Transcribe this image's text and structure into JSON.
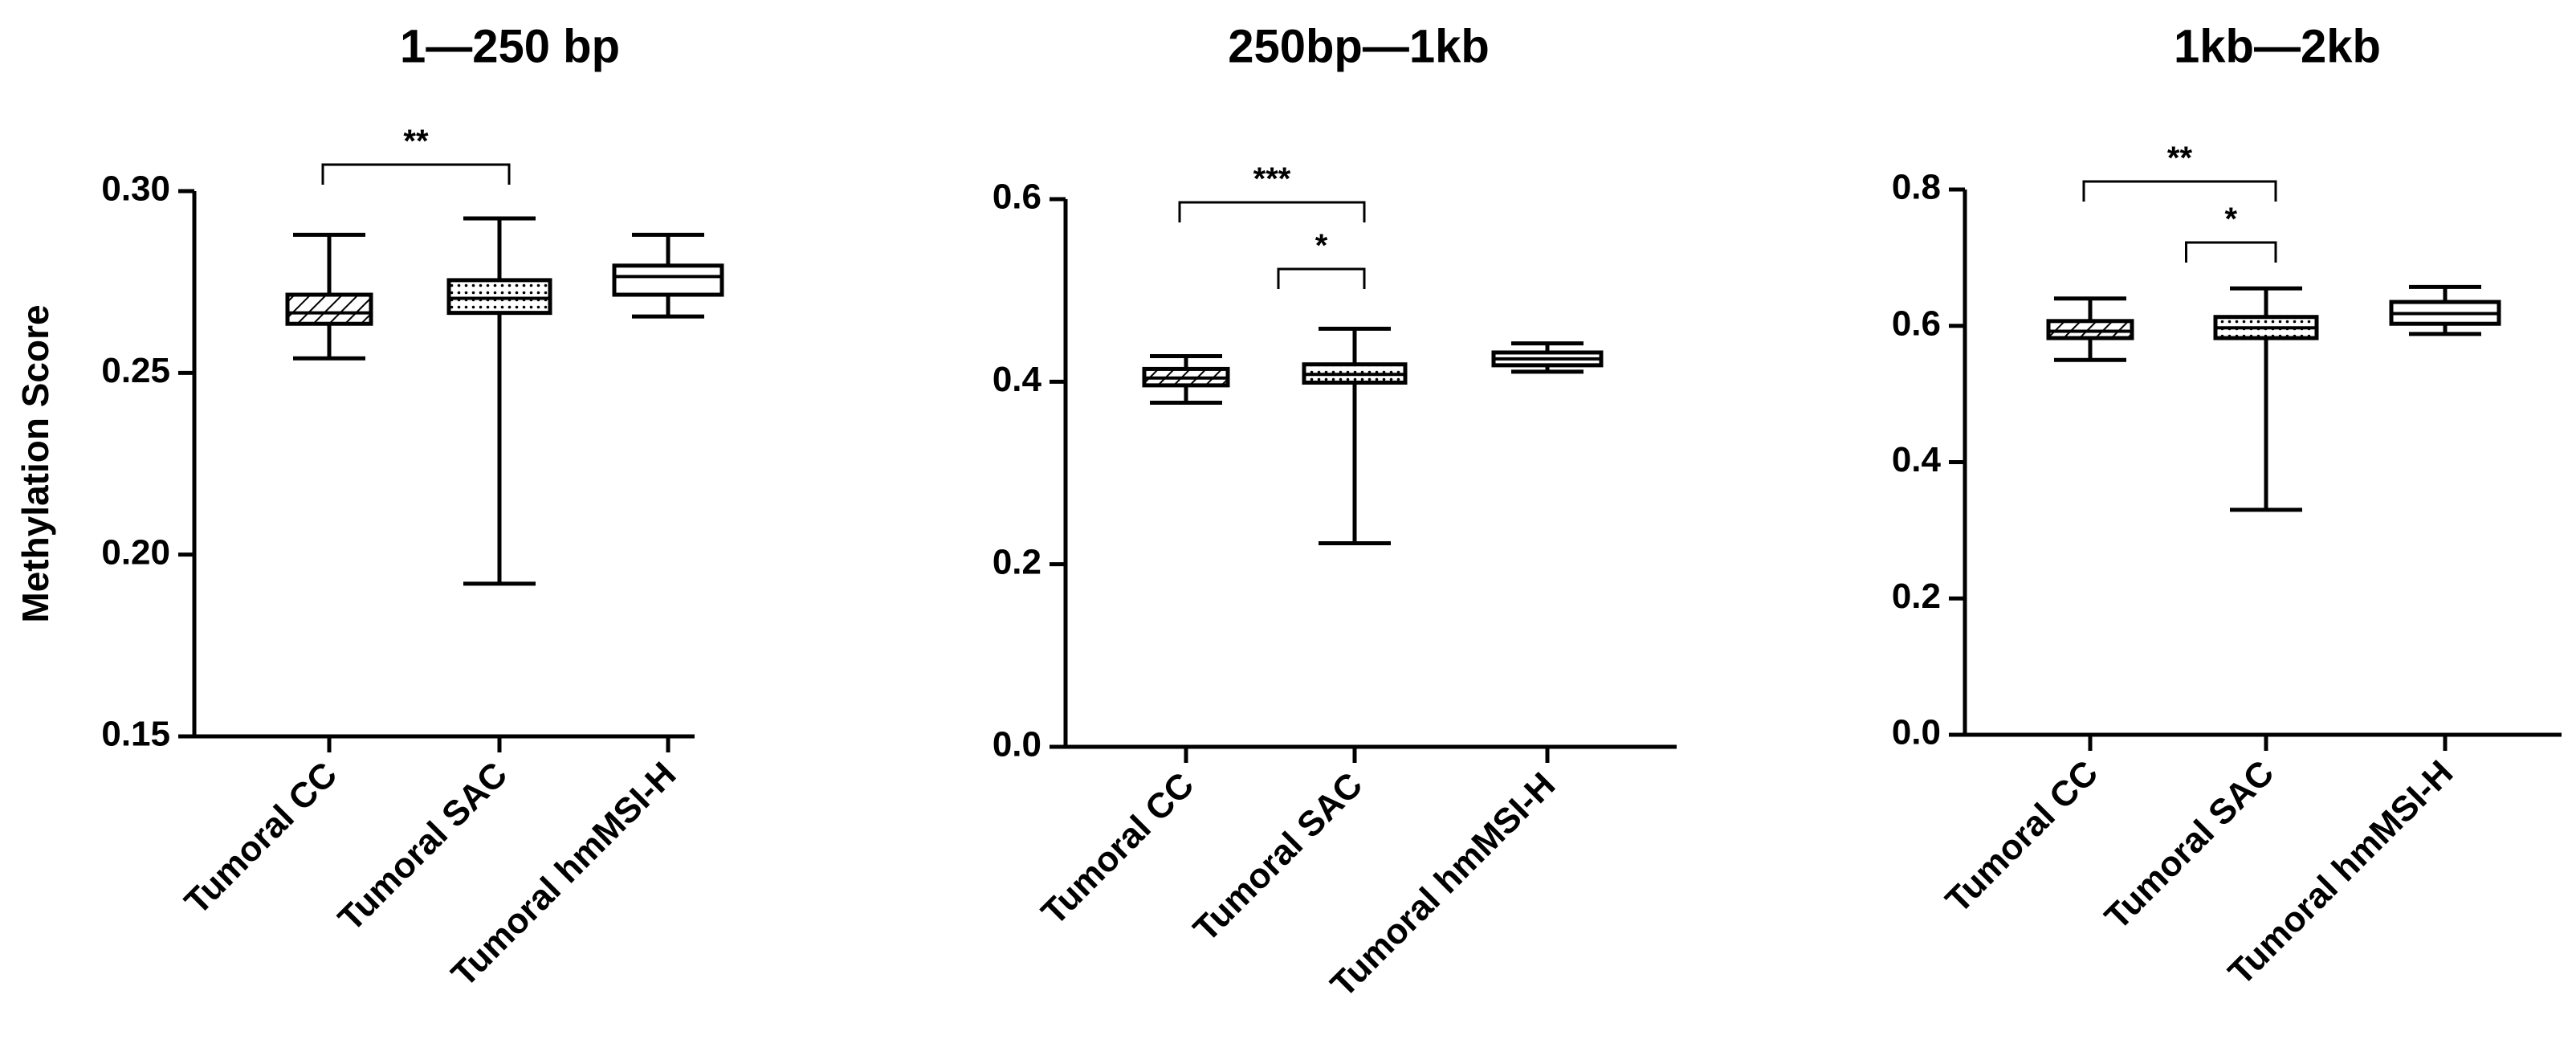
{
  "chart_data": [
    {
      "type": "box",
      "title": "1—250 bp",
      "ylabel": "Methylation Score",
      "ylim": [
        0.15,
        0.3
      ],
      "yticks": [
        "0.15",
        "0.20",
        "0.25",
        "0.30"
      ],
      "categories": [
        "Tumoral CC",
        "Tumoral SAC",
        "Tumoral hmMSI-H"
      ],
      "boxes": [
        {
          "name": "Tumoral CC",
          "min": 0.254,
          "q1": 0.2635,
          "median": 0.2665,
          "q3": 0.2715,
          "max": 0.288,
          "fill": "hatch"
        },
        {
          "name": "Tumoral SAC",
          "min": 0.192,
          "q1": 0.2665,
          "median": 0.2705,
          "q3": 0.2755,
          "max": 0.2925,
          "fill": "dots"
        },
        {
          "name": "Tumoral hmMSI-H",
          "min": 0.2655,
          "q1": 0.2715,
          "median": 0.2765,
          "q3": 0.2795,
          "max": 0.288,
          "fill": "none"
        }
      ],
      "significance": [
        {
          "from": "Tumoral CC",
          "to": "Tumoral SAC",
          "label": "**"
        }
      ]
    },
    {
      "type": "box",
      "title": "250bp—1kb",
      "ylabel": "",
      "ylim": [
        0.0,
        0.6
      ],
      "yticks": [
        "0.0",
        "0.2",
        "0.4",
        "0.6"
      ],
      "categories": [
        "Tumoral CC",
        "Tumoral SAC",
        "Tumoral hmMSI-H"
      ],
      "boxes": [
        {
          "name": "Tumoral CC",
          "min": 0.377,
          "q1": 0.396,
          "median": 0.404,
          "q3": 0.414,
          "max": 0.428,
          "fill": "hatch"
        },
        {
          "name": "Tumoral SAC",
          "min": 0.223,
          "q1": 0.399,
          "median": 0.408,
          "q3": 0.419,
          "max": 0.458,
          "fill": "dots"
        },
        {
          "name": "Tumoral hmMSI-H",
          "min": 0.411,
          "q1": 0.418,
          "median": 0.425,
          "q3": 0.432,
          "max": 0.442,
          "fill": "none"
        }
      ],
      "significance": [
        {
          "from": "Tumoral CC",
          "to": "Tumoral SAC",
          "label": "***"
        },
        {
          "from": "Tumoral SAC",
          "to": "Tumoral SAC",
          "label": "*"
        }
      ]
    },
    {
      "type": "box",
      "title": "1kb—2kb",
      "ylabel": "",
      "ylim": [
        0.0,
        0.8
      ],
      "yticks": [
        "0.0",
        "0.2",
        "0.4",
        "0.6",
        "0.8"
      ],
      "categories": [
        "Tumoral CC",
        "Tumoral SAC",
        "Tumoral hmMSI-H"
      ],
      "boxes": [
        {
          "name": "Tumoral CC",
          "min": 0.55,
          "q1": 0.582,
          "median": 0.592,
          "q3": 0.607,
          "max": 0.64,
          "fill": "hatch"
        },
        {
          "name": "Tumoral SAC",
          "min": 0.33,
          "q1": 0.582,
          "median": 0.597,
          "q3": 0.613,
          "max": 0.655,
          "fill": "dots"
        },
        {
          "name": "Tumoral hmMSI-H",
          "min": 0.588,
          "q1": 0.603,
          "median": 0.618,
          "q3": 0.635,
          "max": 0.657,
          "fill": "none"
        }
      ],
      "significance": [
        {
          "from": "Tumoral CC",
          "to": "Tumoral SAC",
          "label": "**"
        },
        {
          "from": "Tumoral SAC",
          "to": "Tumoral SAC",
          "label": "*"
        }
      ]
    }
  ]
}
